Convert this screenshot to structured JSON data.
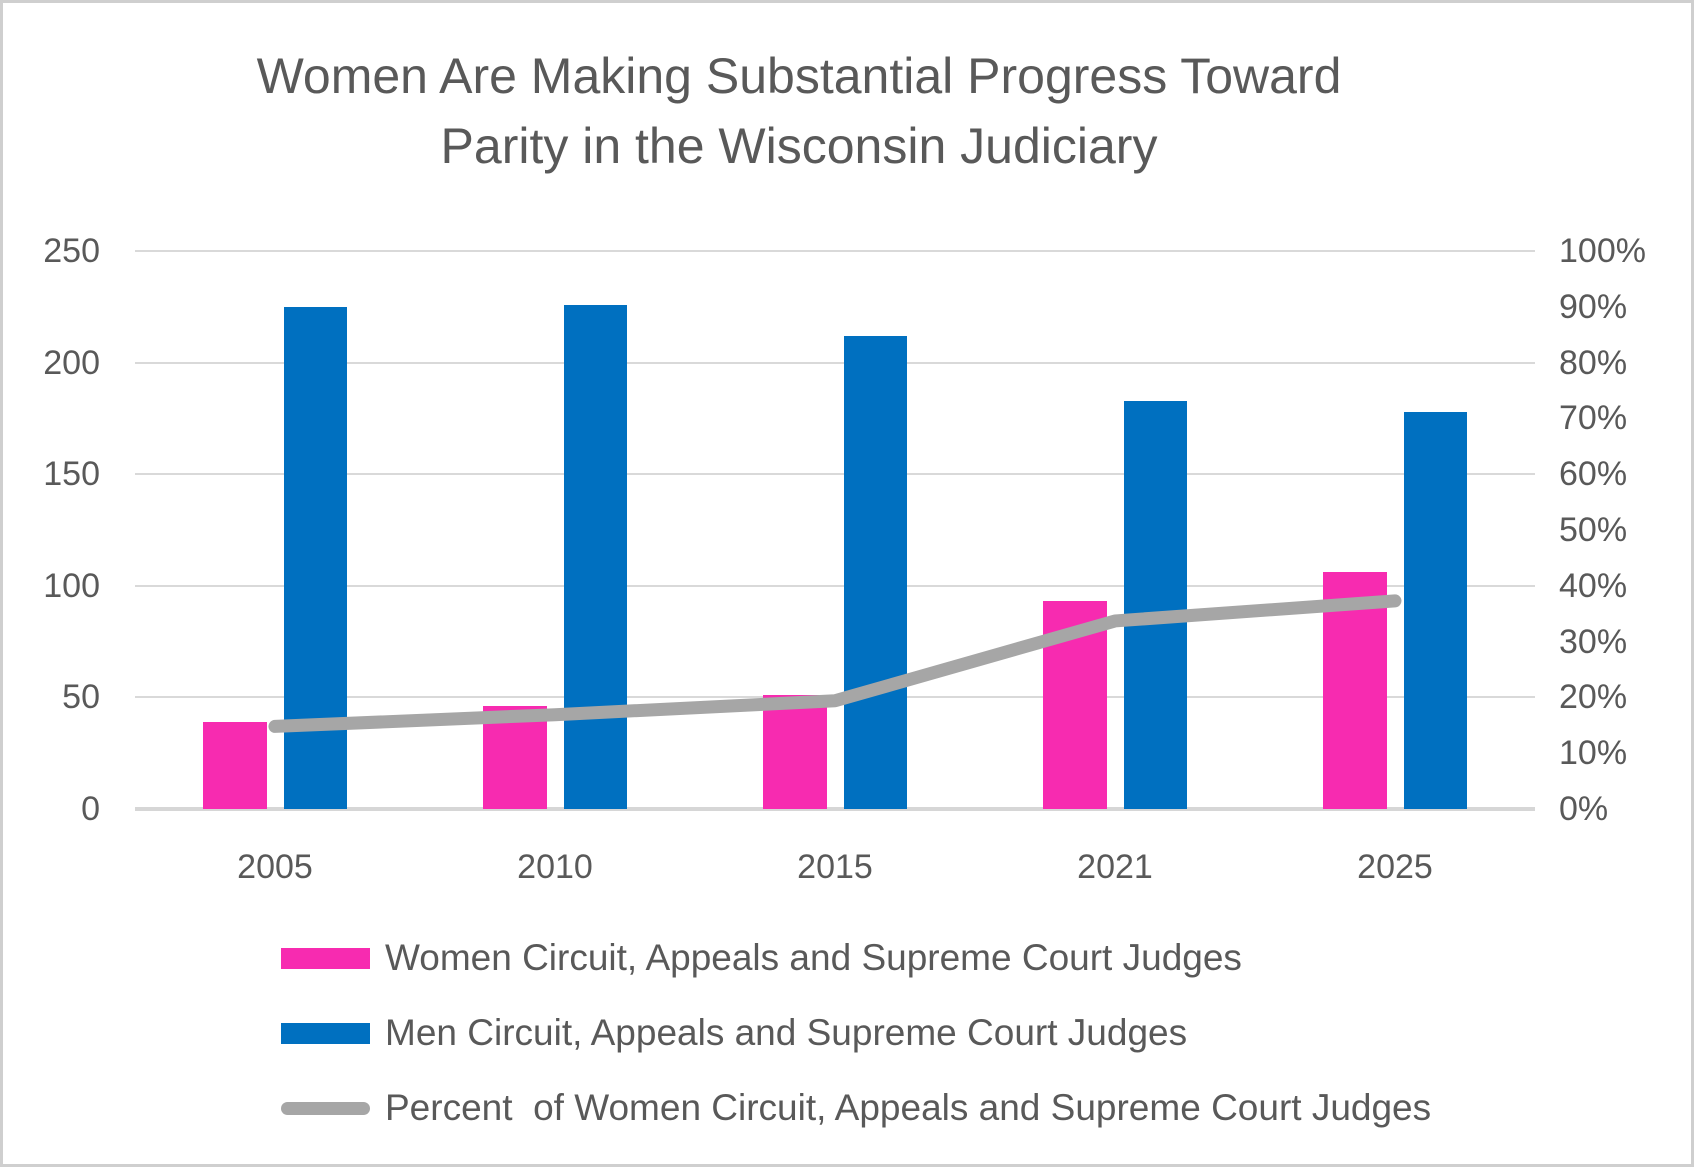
{
  "title_lines": [
    "Women Are Making Substantial Progress Toward",
    "Parity in the Wisconsin Judiciary"
  ],
  "title": "Women Are Making Substantial Progress Toward Parity in the Wisconsin Judiciary",
  "chart_data": {
    "type": "bar",
    "subtype": "combo-bar-line",
    "categories": [
      "2005",
      "2010",
      "2015",
      "2021",
      "2025"
    ],
    "series": [
      {
        "name": "Women Circuit, Appeals and Supreme Court Judges",
        "type": "bar",
        "axis": "left",
        "color": "#f72bb0",
        "values": [
          39,
          46,
          51,
          93,
          106
        ]
      },
      {
        "name": "Men Circuit, Appeals and Supreme Court Judges",
        "type": "bar",
        "axis": "left",
        "color": "#0070c0",
        "values": [
          225,
          226,
          212,
          183,
          178
        ]
      },
      {
        "name": "Percent  of Women Circuit, Appeals and Supreme Court Judges",
        "type": "line",
        "axis": "right",
        "color": "#a6a6a6",
        "values": [
          14.8,
          16.9,
          19.4,
          33.7,
          37.3
        ]
      }
    ],
    "left_axis": {
      "min": 0,
      "max": 250,
      "step": 50,
      "ticks": [
        "0",
        "50",
        "100",
        "150",
        "200",
        "250"
      ]
    },
    "right_axis": {
      "min": 0,
      "max": 100,
      "step": 10,
      "ticks": [
        "0%",
        "10%",
        "20%",
        "30%",
        "40%",
        "50%",
        "60%",
        "70%",
        "80%",
        "90%",
        "100%"
      ]
    },
    "grid": "horizontal gridlines at every 50 units (left) / every 20% (right)",
    "legend_position": "bottom-left",
    "xlabel": "",
    "ylabel": ""
  },
  "colors": {
    "title_text": "#595959",
    "axis_text": "#595959",
    "gridline": "#d9d9d9",
    "axis_line": "#d6d6d6",
    "women_bar": "#f72bb0",
    "men_bar": "#0070c0",
    "percent_line": "#a6a6a6",
    "border": "#cfcfcf",
    "background": "#ffffff"
  }
}
